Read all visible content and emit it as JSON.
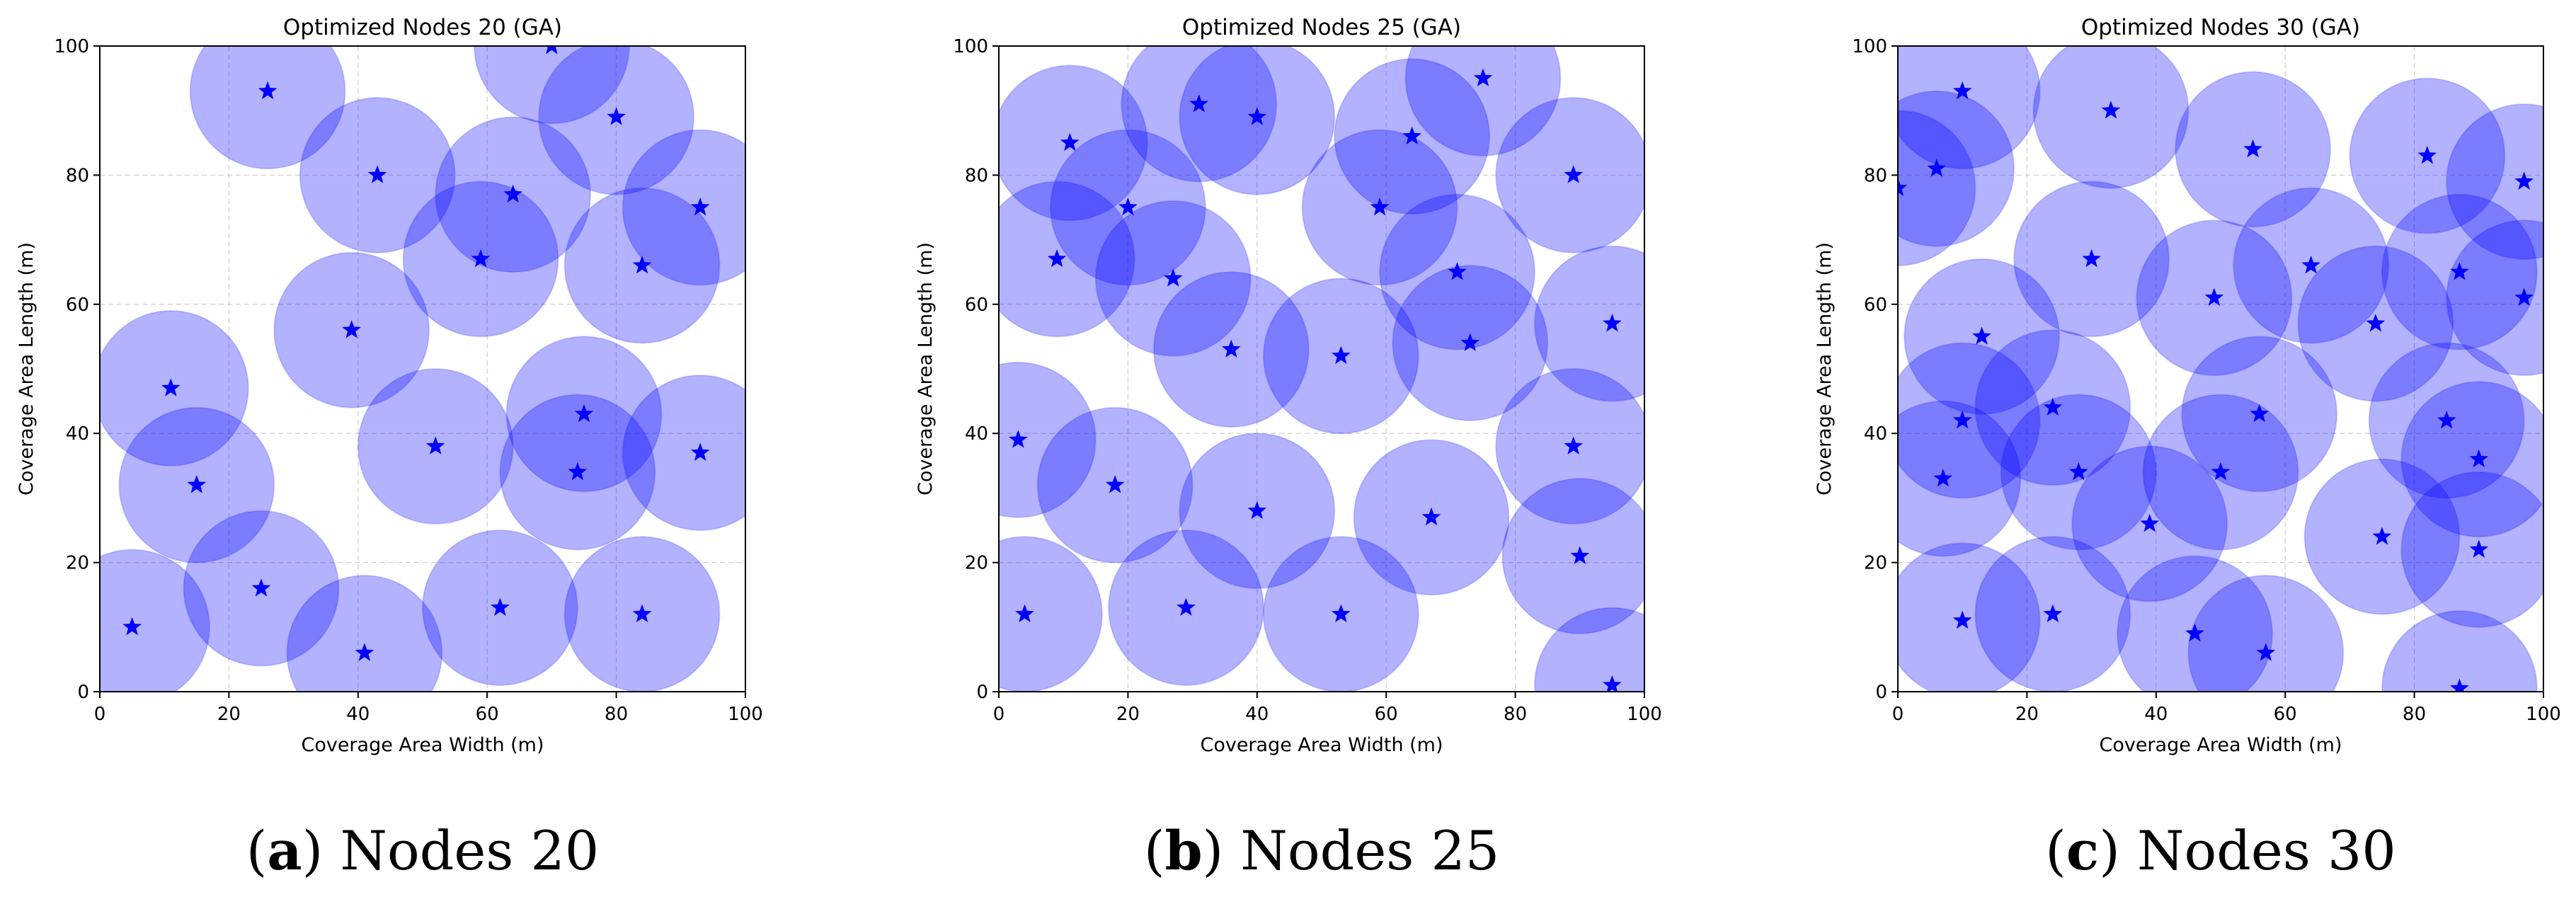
{
  "colors": {
    "circle_fill": "#0000ff",
    "circle_stroke": "#0000ff",
    "marker": "#0000ff",
    "grid": "#b0b0b0",
    "axis": "#000000"
  },
  "chart_data": [
    {
      "type": "scatter",
      "title": "Optimized Nodes 20 (GA)",
      "xlabel": "Coverage Area Width (m)",
      "ylabel": "Coverage Area Length (m)",
      "xlim": [
        0,
        100
      ],
      "ylim": [
        0,
        100
      ],
      "xticks": [
        "0",
        "20",
        "40",
        "60",
        "80",
        "100"
      ],
      "yticks": [
        "0",
        "20",
        "40",
        "60",
        "80",
        "100"
      ],
      "grid": true,
      "coverage_radius": 12,
      "marker": "star",
      "caption_letter": "a",
      "caption_text": "Nodes 20",
      "x": [
        26,
        70,
        80,
        43,
        64,
        93,
        59,
        84,
        39,
        11,
        15,
        52,
        75,
        74,
        93,
        25,
        5,
        41,
        62,
        84
      ],
      "y": [
        93,
        100,
        89,
        80,
        77,
        75,
        67,
        66,
        56,
        47,
        32,
        38,
        43,
        34,
        37,
        16,
        10,
        6,
        13,
        12
      ]
    },
    {
      "type": "scatter",
      "title": "Optimized Nodes 25 (GA)",
      "xlabel": "Coverage Area Width (m)",
      "ylabel": "Coverage Area Length (m)",
      "xlim": [
        0,
        100
      ],
      "ylim": [
        0,
        100
      ],
      "xticks": [
        "0",
        "20",
        "40",
        "60",
        "80",
        "100"
      ],
      "yticks": [
        "0",
        "20",
        "40",
        "60",
        "80",
        "100"
      ],
      "grid": true,
      "coverage_radius": 12,
      "marker": "star",
      "caption_letter": "b",
      "caption_text": "Nodes 25",
      "x": [
        31,
        40,
        75,
        11,
        64,
        89,
        20,
        59,
        9,
        27,
        71,
        36,
        53,
        73,
        95,
        3,
        18,
        89,
        40,
        67,
        90,
        4,
        29,
        53,
        95
      ],
      "y": [
        91,
        89,
        95,
        85,
        86,
        80,
        75,
        75,
        67,
        64,
        65,
        53,
        52,
        54,
        57,
        39,
        32,
        38,
        28,
        27,
        21,
        12,
        13,
        12,
        1
      ]
    },
    {
      "type": "scatter",
      "title": "Optimized Nodes 30 (GA)",
      "xlabel": "Coverage Area Width (m)",
      "ylabel": "Coverage Area Length (m)",
      "xlim": [
        0,
        100
      ],
      "ylim": [
        0,
        100
      ],
      "xticks": [
        "0",
        "20",
        "40",
        "60",
        "80",
        "100"
      ],
      "yticks": [
        "0",
        "20",
        "40",
        "60",
        "80",
        "100"
      ],
      "grid": true,
      "coverage_radius": 12,
      "marker": "star",
      "caption_letter": "c",
      "caption_text": "Nodes 30",
      "x": [
        10,
        33,
        55,
        82,
        0,
        6,
        97,
        30,
        64,
        49,
        87,
        74,
        97,
        13,
        24,
        56,
        85,
        10,
        7,
        28,
        50,
        90,
        39,
        90,
        24,
        75,
        10,
        46,
        57,
        87
      ],
      "y": [
        93,
        90,
        84,
        83,
        78,
        81,
        79,
        67,
        66,
        61,
        65,
        57,
        61,
        55,
        44,
        43,
        42,
        42,
        33,
        34,
        34,
        36,
        26,
        22,
        12,
        24,
        11,
        9,
        6,
        0.5
      ]
    }
  ]
}
